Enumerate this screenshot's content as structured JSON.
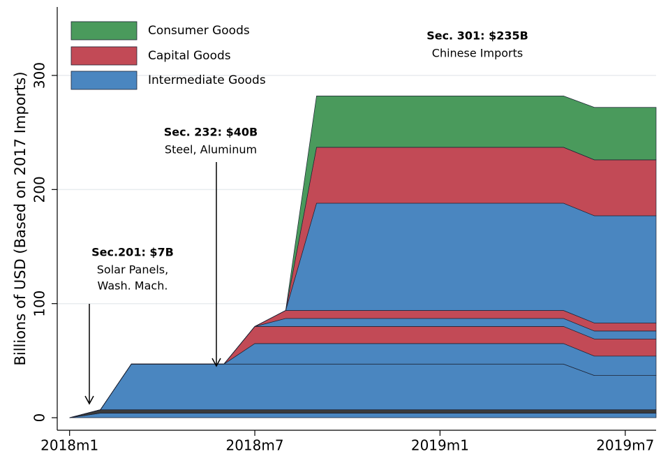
{
  "chart_data": {
    "type": "stacked_area",
    "ylabel": "Billions of USD (Based on 2017 Imports)",
    "x": [
      696,
      697,
      698,
      701,
      702,
      703,
      704,
      712,
      713,
      715
    ],
    "xlim": [
      695.6,
      715
    ],
    "xticks": [
      {
        "value": 696,
        "label": "2018m1"
      },
      {
        "value": 702,
        "label": "2018m7"
      },
      {
        "value": 708,
        "label": "2019m1"
      },
      {
        "value": 714,
        "label": "2019m7"
      }
    ],
    "ylim": [
      -11,
      360
    ],
    "yticks": [
      0,
      100,
      200,
      300
    ],
    "grid": true,
    "legend_position": "upper left",
    "legend": [
      {
        "name": "Consumer Goods",
        "color": "#4a9a5c"
      },
      {
        "name": "Capital Goods",
        "color": "#c24a56"
      },
      {
        "name": "Intermediate Goods",
        "color": "#4a86c0"
      }
    ],
    "series": [
      {
        "color": "#4a86c0",
        "values": [
          0,
          4,
          4,
          4,
          4,
          4,
          4,
          4,
          4,
          4
        ]
      },
      {
        "color": "#3a3a3a",
        "values": [
          0,
          3,
          3,
          3,
          3,
          3,
          3,
          3,
          3,
          3
        ]
      },
      {
        "color": "#4a86c0",
        "values": [
          0,
          0,
          40,
          40,
          40,
          40,
          40,
          40,
          30,
          30
        ]
      },
      {
        "color": "#4a86c0",
        "values": [
          0,
          0,
          0,
          0,
          18,
          18,
          18,
          18,
          17,
          17
        ]
      },
      {
        "color": "#c24a56",
        "values": [
          0,
          0,
          0,
          0,
          15,
          15,
          15,
          15,
          15,
          15
        ]
      },
      {
        "color": "#4a86c0",
        "values": [
          0,
          0,
          0,
          0,
          0,
          7,
          7,
          7,
          7,
          7
        ]
      },
      {
        "color": "#c24a56",
        "values": [
          0,
          0,
          0,
          0,
          0,
          7,
          7,
          7,
          7,
          7
        ]
      },
      {
        "color": "#4a86c0",
        "values": [
          0,
          0,
          0,
          0,
          0,
          0,
          94,
          94,
          94,
          94
        ]
      },
      {
        "color": "#c24a56",
        "values": [
          0,
          0,
          0,
          0,
          0,
          0,
          49,
          49,
          49,
          49
        ]
      },
      {
        "color": "#4a9a5c",
        "values": [
          0,
          0,
          0,
          0,
          0,
          0,
          45,
          45,
          46,
          46
        ]
      }
    ],
    "annotations": [
      {
        "title": "Sec.201: $7B",
        "lines": [
          "Solar Panels,",
          "Wash. Mach."
        ]
      },
      {
        "title": "Sec. 232: $40B",
        "lines": [
          "Steel, Aluminum"
        ]
      },
      {
        "title": "Sec. 301: $235B",
        "lines": [
          "Chinese Imports"
        ]
      }
    ]
  }
}
